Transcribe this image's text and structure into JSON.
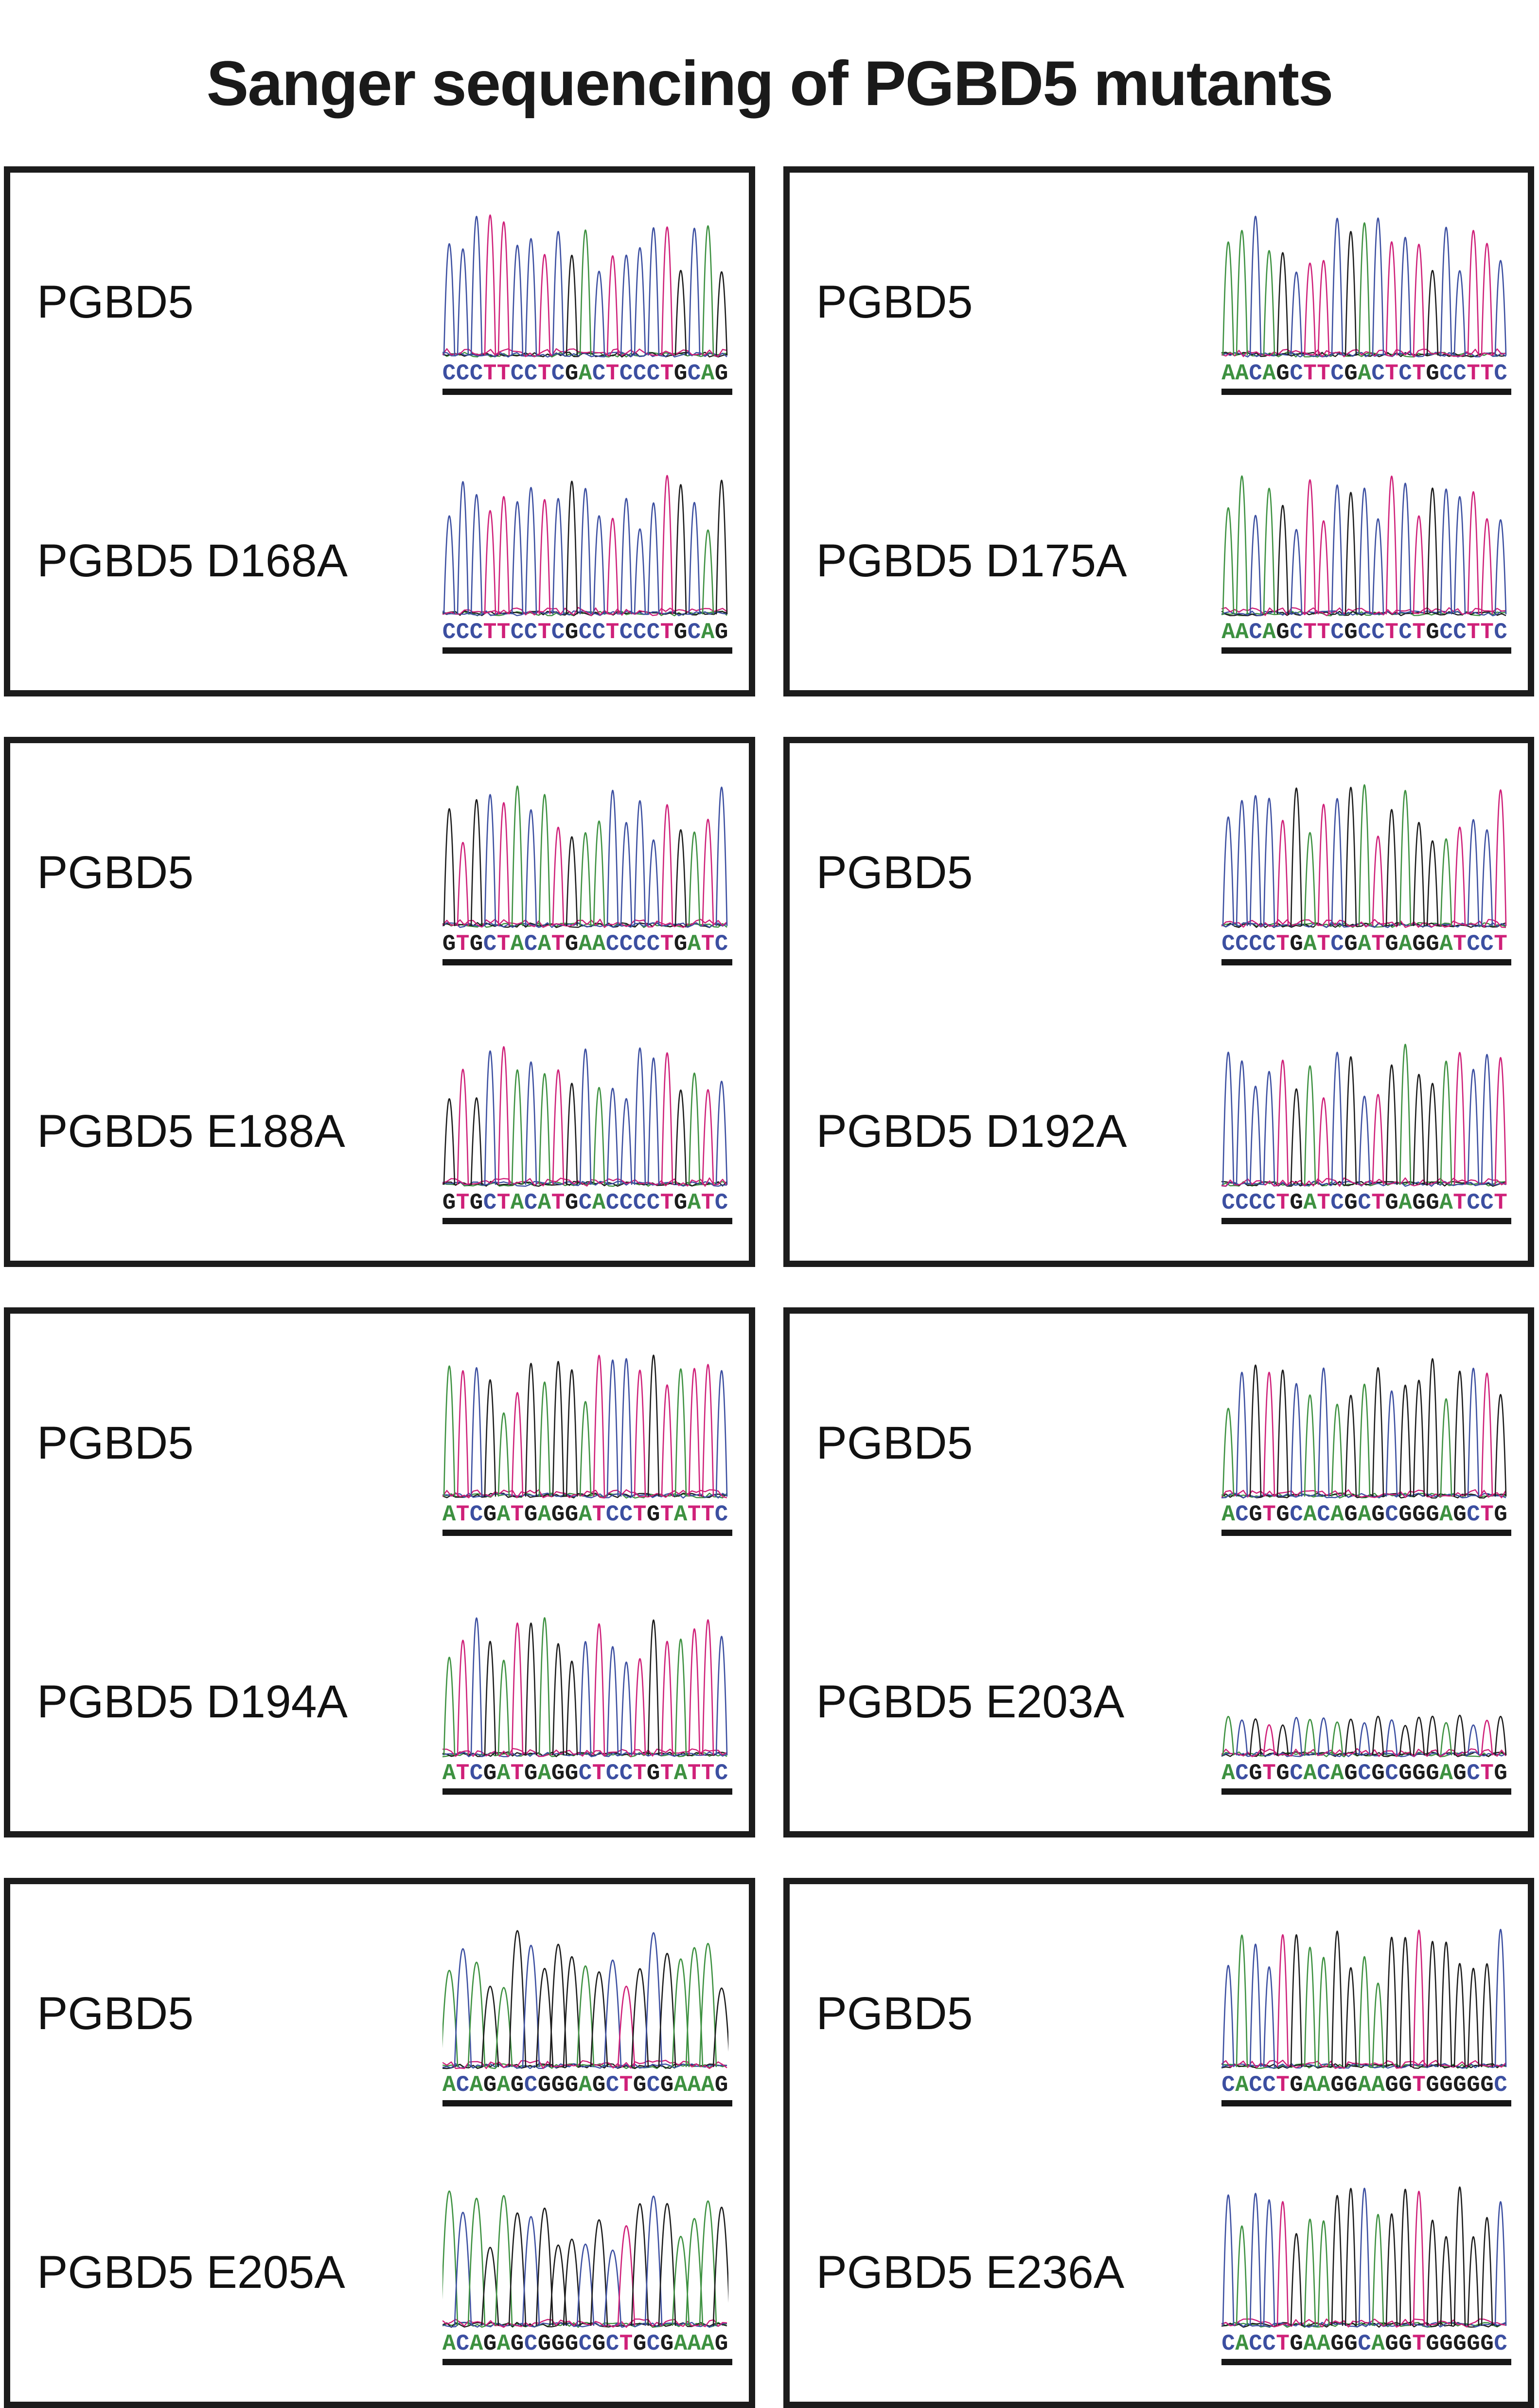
{
  "title": "Sanger sequencing of PGBD5 mutants",
  "base_colors": {
    "A": "#3d9140",
    "C": "#3c4fa1",
    "G": "#1c1c1c",
    "T": "#cf2079"
  },
  "panels": [
    {
      "wt": {
        "label": "PGBD5",
        "sequence": "CCCTTCCTCGACTCCCTGCAG",
        "trace_style": "sharp"
      },
      "mut": {
        "label": "PGBD5 D168A",
        "sequence": "CCCTTCCTCGCCTCCCTGCAG",
        "trace_style": "sharp"
      }
    },
    {
      "wt": {
        "label": "PGBD5",
        "sequence": "AACAGCTTCGACTCTGCCTTC",
        "trace_style": "sharp"
      },
      "mut": {
        "label": "PGBD5 D175A",
        "sequence": "AACAGCTTCGCCTCTGCCTTC",
        "trace_style": "sharp"
      }
    },
    {
      "wt": {
        "label": "PGBD5",
        "sequence": "GTGCTACATGAACCCCTGATC",
        "trace_style": "sharp"
      },
      "mut": {
        "label": "PGBD5 E188A",
        "sequence": "GTGCTACATGCACCCCTGATC",
        "trace_style": "sharp"
      }
    },
    {
      "wt": {
        "label": "PGBD5",
        "sequence": "CCCCTGATCGATGAGGATCCT",
        "trace_style": "sharp"
      },
      "mut": {
        "label": "PGBD5 D192A",
        "sequence": "CCCCTGATCGCTGAGGATCCT",
        "trace_style": "sharp"
      }
    },
    {
      "wt": {
        "label": "PGBD5",
        "sequence": "ATCGATGAGGATCCTGTATTC",
        "trace_style": "sharp"
      },
      "mut": {
        "label": "PGBD5 D194A",
        "sequence": "ATCGATGAGGCTCCTGTATTC",
        "trace_style": "sharp"
      }
    },
    {
      "wt": {
        "label": "PGBD5",
        "sequence": "ACGTGCACAGAGCGGGAGCTG",
        "trace_style": "sharp"
      },
      "mut": {
        "label": "PGBD5 E203A",
        "sequence": "ACGTGCACAGCGCGGGAGCTG",
        "trace_style": "compact"
      }
    },
    {
      "wt": {
        "label": "PGBD5",
        "sequence": "ACAGAGCGGGAGCTGCGAAAG",
        "trace_style": "broad"
      },
      "mut": {
        "label": "PGBD5 E205A",
        "sequence": "ACAGAGCGGGCGCTGCGAAAG",
        "trace_style": "broad"
      }
    },
    {
      "wt": {
        "label": "PGBD5",
        "sequence": "CACCTGAAGGAAGGTGGGGGC",
        "trace_style": "sharp"
      },
      "mut": {
        "label": "PGBD5 E236A",
        "sequence": "CACCTGAAGGCAGGTGGGGGC",
        "trace_style": "sharp"
      }
    }
  ]
}
